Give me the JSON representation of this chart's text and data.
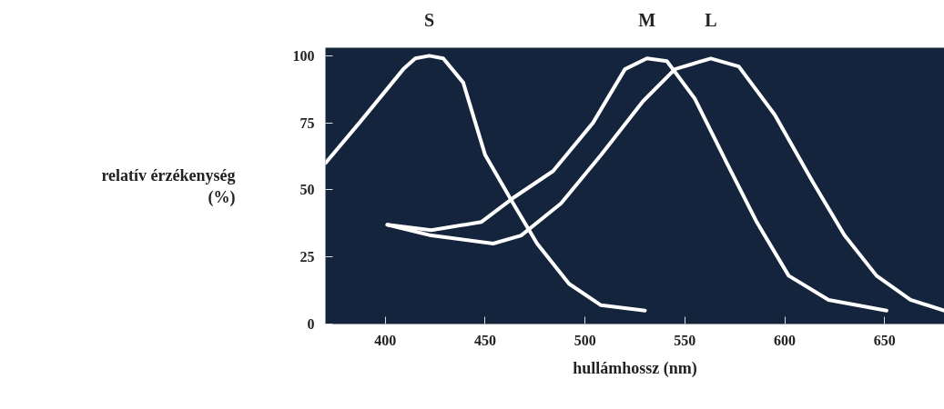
{
  "chart_data": {
    "type": "line",
    "xlabel": "hullámhossz (nm)",
    "ylabel": "relatív érzékenység (%)",
    "xlim": [
      370,
      680
    ],
    "xticks": [
      400,
      450,
      500,
      550,
      600,
      650
    ],
    "ylim": [
      0,
      103
    ],
    "yticks": [
      0,
      25,
      50,
      75,
      100
    ],
    "grid": false,
    "marker": "none",
    "line_style": "solid",
    "series": [
      {
        "name": "S",
        "color": "#ffffff",
        "x": [
          370,
          387,
          409,
          415,
          422,
          429,
          439,
          450,
          464,
          476,
          492,
          508,
          530
        ],
        "values": [
          60,
          75,
          95,
          99,
          100,
          99,
          90,
          63,
          45,
          30,
          15,
          7,
          5
        ]
      },
      {
        "name": "M",
        "color": "#ffffff",
        "x": [
          401,
          423,
          448,
          464,
          484,
          504,
          520,
          531,
          541,
          555,
          571,
          586,
          602,
          622,
          651
        ],
        "values": [
          37,
          35,
          38,
          47,
          57,
          75,
          95,
          99,
          98,
          84,
          60,
          38,
          18,
          9,
          5
        ]
      },
      {
        "name": "L",
        "color": "#ffffff",
        "x": [
          401,
          423,
          454,
          468,
          488,
          508,
          529,
          545,
          563,
          577,
          595,
          614,
          630,
          646,
          663,
          680
        ],
        "values": [
          37,
          33,
          30,
          33,
          45,
          63,
          83,
          95,
          99,
          96,
          78,
          53,
          33,
          18,
          9,
          5
        ]
      }
    ]
  }
}
